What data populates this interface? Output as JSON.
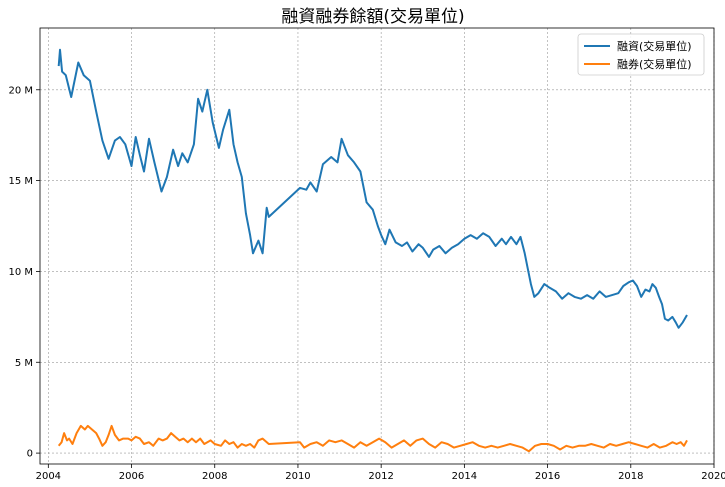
{
  "chart_data": {
    "type": "line",
    "title": "融資融券餘額(交易單位)",
    "xlabel": "",
    "ylabel": "",
    "xlim": [
      2003.8,
      2020.0
    ],
    "ylim": [
      -0.6,
      23.4
    ],
    "x_ticks": [
      2004,
      2006,
      2008,
      2010,
      2012,
      2014,
      2016,
      2018,
      2020
    ],
    "x_tick_labels": [
      "2004",
      "2006",
      "2008",
      "2010",
      "2012",
      "2014",
      "2016",
      "2018",
      "2020"
    ],
    "y_ticks": [
      0,
      5,
      10,
      15,
      20
    ],
    "y_tick_labels": [
      "0",
      "5 M",
      "10 M",
      "15 M",
      "20 M"
    ],
    "grid": true,
    "legend_position": "top-right",
    "series": [
      {
        "name": "融資(交易單位)",
        "color": "#1f77b4",
        "points": [
          [
            2004.25,
            21.3
          ],
          [
            2004.28,
            22.2
          ],
          [
            2004.33,
            21.0
          ],
          [
            2004.42,
            20.8
          ],
          [
            2004.55,
            19.6
          ],
          [
            2004.72,
            21.5
          ],
          [
            2004.85,
            20.8
          ],
          [
            2005.0,
            20.5
          ],
          [
            2005.15,
            18.8
          ],
          [
            2005.3,
            17.2
          ],
          [
            2005.45,
            16.2
          ],
          [
            2005.6,
            17.2
          ],
          [
            2005.72,
            17.4
          ],
          [
            2005.85,
            17.0
          ],
          [
            2006.0,
            15.8
          ],
          [
            2006.1,
            17.4
          ],
          [
            2006.2,
            16.4
          ],
          [
            2006.3,
            15.5
          ],
          [
            2006.42,
            17.3
          ],
          [
            2006.55,
            16.0
          ],
          [
            2006.72,
            14.4
          ],
          [
            2006.85,
            15.2
          ],
          [
            2007.0,
            16.7
          ],
          [
            2007.12,
            15.8
          ],
          [
            2007.22,
            16.5
          ],
          [
            2007.35,
            16.0
          ],
          [
            2007.5,
            17.0
          ],
          [
            2007.6,
            19.5
          ],
          [
            2007.7,
            18.8
          ],
          [
            2007.82,
            20.0
          ],
          [
            2007.95,
            18.2
          ],
          [
            2008.1,
            16.8
          ],
          [
            2008.2,
            17.8
          ],
          [
            2008.35,
            18.9
          ],
          [
            2008.45,
            17.0
          ],
          [
            2008.55,
            16.0
          ],
          [
            2008.65,
            15.2
          ],
          [
            2008.75,
            13.2
          ],
          [
            2008.85,
            12.0
          ],
          [
            2008.92,
            11.0
          ],
          [
            2009.05,
            11.7
          ],
          [
            2009.15,
            11.0
          ],
          [
            2009.25,
            13.5
          ],
          [
            2009.3,
            13.0
          ],
          [
            2010.05,
            14.6
          ],
          [
            2010.2,
            14.5
          ],
          [
            2010.3,
            14.9
          ],
          [
            2010.45,
            14.4
          ],
          [
            2010.6,
            15.9
          ],
          [
            2010.8,
            16.3
          ],
          [
            2010.95,
            16.0
          ],
          [
            2011.05,
            17.3
          ],
          [
            2011.2,
            16.4
          ],
          [
            2011.35,
            16.0
          ],
          [
            2011.5,
            15.5
          ],
          [
            2011.65,
            13.8
          ],
          [
            2011.8,
            13.4
          ],
          [
            2011.92,
            12.5
          ],
          [
            2012.0,
            12.0
          ],
          [
            2012.1,
            11.5
          ],
          [
            2012.2,
            12.3
          ],
          [
            2012.35,
            11.6
          ],
          [
            2012.5,
            11.4
          ],
          [
            2012.62,
            11.6
          ],
          [
            2012.75,
            11.1
          ],
          [
            2012.9,
            11.5
          ],
          [
            2013.0,
            11.3
          ],
          [
            2013.15,
            10.8
          ],
          [
            2013.25,
            11.2
          ],
          [
            2013.4,
            11.4
          ],
          [
            2013.55,
            11.0
          ],
          [
            2013.7,
            11.3
          ],
          [
            2013.85,
            11.5
          ],
          [
            2014.0,
            11.8
          ],
          [
            2014.15,
            12.0
          ],
          [
            2014.3,
            11.8
          ],
          [
            2014.45,
            12.1
          ],
          [
            2014.6,
            11.9
          ],
          [
            2014.75,
            11.4
          ],
          [
            2014.9,
            11.8
          ],
          [
            2015.0,
            11.5
          ],
          [
            2015.12,
            11.9
          ],
          [
            2015.25,
            11.5
          ],
          [
            2015.35,
            11.9
          ],
          [
            2015.45,
            11.0
          ],
          [
            2015.52,
            10.2
          ],
          [
            2015.6,
            9.3
          ],
          [
            2015.68,
            8.6
          ],
          [
            2015.78,
            8.8
          ],
          [
            2015.92,
            9.3
          ],
          [
            2016.05,
            9.1
          ],
          [
            2016.2,
            8.9
          ],
          [
            2016.35,
            8.5
          ],
          [
            2016.5,
            8.8
          ],
          [
            2016.65,
            8.6
          ],
          [
            2016.8,
            8.5
          ],
          [
            2016.95,
            8.7
          ],
          [
            2017.1,
            8.5
          ],
          [
            2017.25,
            8.9
          ],
          [
            2017.4,
            8.6
          ],
          [
            2017.55,
            8.7
          ],
          [
            2017.7,
            8.8
          ],
          [
            2017.82,
            9.2
          ],
          [
            2017.95,
            9.4
          ],
          [
            2018.05,
            9.5
          ],
          [
            2018.15,
            9.2
          ],
          [
            2018.25,
            8.6
          ],
          [
            2018.35,
            9.0
          ],
          [
            2018.45,
            8.9
          ],
          [
            2018.52,
            9.3
          ],
          [
            2018.6,
            9.1
          ],
          [
            2018.68,
            8.6
          ],
          [
            2018.75,
            8.2
          ],
          [
            2018.82,
            7.4
          ],
          [
            2018.9,
            7.3
          ],
          [
            2019.0,
            7.5
          ],
          [
            2019.08,
            7.2
          ],
          [
            2019.15,
            6.9
          ],
          [
            2019.25,
            7.2
          ],
          [
            2019.35,
            7.6
          ]
        ]
      },
      {
        "name": "融券(交易單位)",
        "color": "#ff7f0e",
        "points": [
          [
            2004.25,
            0.4
          ],
          [
            2004.32,
            0.6
          ],
          [
            2004.38,
            1.1
          ],
          [
            2004.45,
            0.7
          ],
          [
            2004.5,
            0.8
          ],
          [
            2004.58,
            0.5
          ],
          [
            2004.68,
            1.1
          ],
          [
            2004.78,
            1.5
          ],
          [
            2004.88,
            1.3
          ],
          [
            2004.95,
            1.5
          ],
          [
            2005.05,
            1.3
          ],
          [
            2005.15,
            1.1
          ],
          [
            2005.22,
            0.8
          ],
          [
            2005.3,
            0.4
          ],
          [
            2005.38,
            0.6
          ],
          [
            2005.45,
            1.0
          ],
          [
            2005.52,
            1.5
          ],
          [
            2005.6,
            1.0
          ],
          [
            2005.7,
            0.7
          ],
          [
            2005.8,
            0.8
          ],
          [
            2005.92,
            0.8
          ],
          [
            2006.0,
            0.7
          ],
          [
            2006.1,
            0.9
          ],
          [
            2006.2,
            0.8
          ],
          [
            2006.3,
            0.5
          ],
          [
            2006.42,
            0.6
          ],
          [
            2006.52,
            0.4
          ],
          [
            2006.65,
            0.8
          ],
          [
            2006.75,
            0.7
          ],
          [
            2006.85,
            0.8
          ],
          [
            2006.95,
            1.1
          ],
          [
            2007.05,
            0.9
          ],
          [
            2007.15,
            0.7
          ],
          [
            2007.25,
            0.8
          ],
          [
            2007.35,
            0.6
          ],
          [
            2007.45,
            0.8
          ],
          [
            2007.55,
            0.6
          ],
          [
            2007.65,
            0.8
          ],
          [
            2007.75,
            0.5
          ],
          [
            2007.9,
            0.7
          ],
          [
            2008.0,
            0.5
          ],
          [
            2008.15,
            0.4
          ],
          [
            2008.25,
            0.7
          ],
          [
            2008.35,
            0.5
          ],
          [
            2008.45,
            0.6
          ],
          [
            2008.55,
            0.3
          ],
          [
            2008.65,
            0.5
          ],
          [
            2008.75,
            0.4
          ],
          [
            2008.85,
            0.5
          ],
          [
            2008.95,
            0.3
          ],
          [
            2009.05,
            0.7
          ],
          [
            2009.15,
            0.8
          ],
          [
            2009.3,
            0.5
          ],
          [
            2010.05,
            0.6
          ],
          [
            2010.15,
            0.3
          ],
          [
            2010.3,
            0.5
          ],
          [
            2010.45,
            0.6
          ],
          [
            2010.6,
            0.4
          ],
          [
            2010.75,
            0.7
          ],
          [
            2010.9,
            0.6
          ],
          [
            2011.05,
            0.7
          ],
          [
            2011.2,
            0.5
          ],
          [
            2011.35,
            0.3
          ],
          [
            2011.5,
            0.6
          ],
          [
            2011.65,
            0.4
          ],
          [
            2011.8,
            0.6
          ],
          [
            2011.95,
            0.8
          ],
          [
            2012.1,
            0.6
          ],
          [
            2012.25,
            0.3
          ],
          [
            2012.4,
            0.5
          ],
          [
            2012.55,
            0.7
          ],
          [
            2012.7,
            0.4
          ],
          [
            2012.85,
            0.7
          ],
          [
            2013.0,
            0.8
          ],
          [
            2013.15,
            0.5
          ],
          [
            2013.3,
            0.3
          ],
          [
            2013.45,
            0.6
          ],
          [
            2013.6,
            0.5
          ],
          [
            2013.75,
            0.3
          ],
          [
            2013.9,
            0.4
          ],
          [
            2014.05,
            0.5
          ],
          [
            2014.2,
            0.6
          ],
          [
            2014.35,
            0.4
          ],
          [
            2014.5,
            0.3
          ],
          [
            2014.65,
            0.4
          ],
          [
            2014.8,
            0.3
          ],
          [
            2014.95,
            0.4
          ],
          [
            2015.1,
            0.5
          ],
          [
            2015.25,
            0.4
          ],
          [
            2015.4,
            0.3
          ],
          [
            2015.55,
            0.1
          ],
          [
            2015.7,
            0.4
          ],
          [
            2015.85,
            0.5
          ],
          [
            2016.0,
            0.5
          ],
          [
            2016.15,
            0.4
          ],
          [
            2016.3,
            0.2
          ],
          [
            2016.45,
            0.4
          ],
          [
            2016.6,
            0.3
          ],
          [
            2016.75,
            0.4
          ],
          [
            2016.9,
            0.4
          ],
          [
            2017.05,
            0.5
          ],
          [
            2017.2,
            0.4
          ],
          [
            2017.35,
            0.3
          ],
          [
            2017.5,
            0.5
          ],
          [
            2017.65,
            0.4
          ],
          [
            2017.8,
            0.5
          ],
          [
            2017.95,
            0.6
          ],
          [
            2018.1,
            0.5
          ],
          [
            2018.25,
            0.4
          ],
          [
            2018.4,
            0.3
          ],
          [
            2018.55,
            0.5
          ],
          [
            2018.7,
            0.3
          ],
          [
            2018.85,
            0.4
          ],
          [
            2019.0,
            0.6
          ],
          [
            2019.1,
            0.5
          ],
          [
            2019.2,
            0.6
          ],
          [
            2019.28,
            0.4
          ],
          [
            2019.35,
            0.7
          ]
        ]
      }
    ]
  }
}
